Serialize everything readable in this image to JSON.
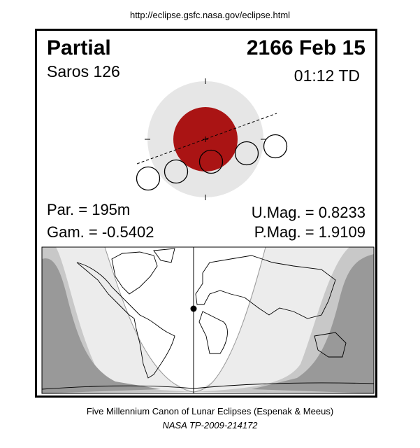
{
  "header": {
    "url": "http://eclipse.gsfc.nasa.gov/eclipse.html"
  },
  "eclipse": {
    "type": "Partial",
    "date": "2166 Feb 15",
    "saros": "Saros 126",
    "time": "01:12 TD",
    "par": "Par. = 195m",
    "gam": "Gam. = -0.5402",
    "umag": "U.Mag. = 0.8233",
    "pmag": "P.Mag. = 1.9109"
  },
  "colors": {
    "umbra": "#aa1414",
    "penumbra": "#e6e6e6",
    "night": "#999999",
    "penumbral_band": "#c8c8c8",
    "partial_band": "#ececec",
    "day": "#ffffff"
  },
  "footer": {
    "line1": "Five Millennium Canon of Lunar Eclipses (Espenak & Meeus)",
    "line2": "NASA TP-2009-214172"
  }
}
